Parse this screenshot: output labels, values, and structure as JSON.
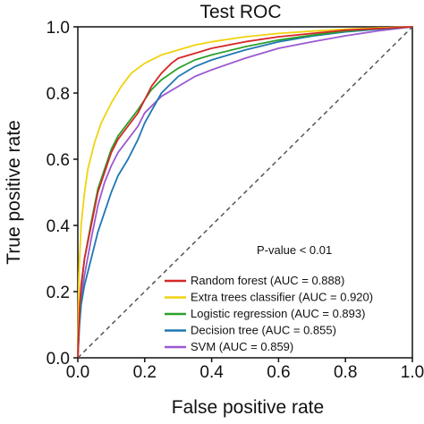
{
  "chart_data": {
    "type": "line",
    "title": "Test ROC",
    "xlabel": "False positive rate",
    "ylabel": "True positive rate",
    "xlim": [
      0,
      1
    ],
    "ylim": [
      0,
      1
    ],
    "xticks": [
      "0.0",
      "0.2",
      "0.4",
      "0.6",
      "0.8",
      "1.0"
    ],
    "yticks": [
      "0.0",
      "0.2",
      "0.4",
      "0.6",
      "0.8",
      "1.0"
    ],
    "grid": false,
    "legend_position": "bottom-right",
    "annotation": "P-value < 0.01",
    "diagonal": {
      "x": [
        0,
        1
      ],
      "y": [
        0,
        1
      ],
      "color": "#555555",
      "style": "dashed"
    },
    "series": [
      {
        "name": "Random forest (AUC = 0.888)",
        "color": "#d62728",
        "x": [
          0,
          0.005,
          0.01,
          0.02,
          0.04,
          0.06,
          0.08,
          0.1,
          0.12,
          0.15,
          0.18,
          0.2,
          0.22,
          0.25,
          0.28,
          0.3,
          0.35,
          0.4,
          0.5,
          0.6,
          0.7,
          0.8,
          0.9,
          1.0
        ],
        "y": [
          0,
          0.15,
          0.22,
          0.3,
          0.4,
          0.5,
          0.56,
          0.62,
          0.66,
          0.7,
          0.74,
          0.78,
          0.82,
          0.86,
          0.89,
          0.905,
          0.92,
          0.935,
          0.955,
          0.97,
          0.98,
          0.99,
          0.995,
          1.0
        ]
      },
      {
        "name": "Extra trees classifier (AUC = 0.920)",
        "color": "#f1d20f",
        "x": [
          0,
          0.003,
          0.01,
          0.02,
          0.03,
          0.05,
          0.07,
          0.1,
          0.13,
          0.16,
          0.2,
          0.25,
          0.3,
          0.35,
          0.4,
          0.5,
          0.6,
          0.7,
          0.8,
          0.9,
          1.0
        ],
        "y": [
          0,
          0.25,
          0.4,
          0.5,
          0.57,
          0.65,
          0.71,
          0.77,
          0.82,
          0.86,
          0.89,
          0.915,
          0.93,
          0.945,
          0.955,
          0.97,
          0.98,
          0.987,
          0.993,
          0.997,
          1.0
        ]
      },
      {
        "name": "Logistic regression (AUC = 0.893)",
        "color": "#2ca02c",
        "x": [
          0,
          0.005,
          0.01,
          0.02,
          0.04,
          0.06,
          0.08,
          0.1,
          0.12,
          0.15,
          0.18,
          0.2,
          0.22,
          0.25,
          0.3,
          0.35,
          0.4,
          0.5,
          0.6,
          0.7,
          0.8,
          0.9,
          1.0
        ],
        "y": [
          0,
          0.14,
          0.21,
          0.3,
          0.41,
          0.51,
          0.57,
          0.63,
          0.67,
          0.71,
          0.75,
          0.78,
          0.81,
          0.84,
          0.875,
          0.9,
          0.915,
          0.94,
          0.96,
          0.975,
          0.987,
          0.995,
          1.0
        ]
      },
      {
        "name": "Decision tree (AUC = 0.855)",
        "color": "#1f77b4",
        "x": [
          0,
          0.005,
          0.01,
          0.02,
          0.04,
          0.06,
          0.08,
          0.1,
          0.12,
          0.15,
          0.18,
          0.2,
          0.25,
          0.3,
          0.35,
          0.4,
          0.5,
          0.6,
          0.7,
          0.8,
          0.9,
          1.0
        ],
        "y": [
          0,
          0.1,
          0.16,
          0.22,
          0.3,
          0.38,
          0.44,
          0.5,
          0.55,
          0.6,
          0.66,
          0.71,
          0.8,
          0.85,
          0.88,
          0.9,
          0.93,
          0.955,
          0.972,
          0.985,
          0.993,
          1.0
        ]
      },
      {
        "name": "SVM (AUC = 0.859)",
        "color": "#9b59d0",
        "x": [
          0,
          0.005,
          0.01,
          0.02,
          0.04,
          0.06,
          0.08,
          0.1,
          0.12,
          0.15,
          0.18,
          0.2,
          0.25,
          0.3,
          0.35,
          0.4,
          0.5,
          0.6,
          0.7,
          0.8,
          0.9,
          1.0
        ],
        "y": [
          0,
          0.12,
          0.18,
          0.25,
          0.36,
          0.46,
          0.53,
          0.58,
          0.62,
          0.66,
          0.7,
          0.74,
          0.79,
          0.82,
          0.85,
          0.87,
          0.905,
          0.935,
          0.955,
          0.973,
          0.988,
          1.0
        ]
      }
    ]
  }
}
